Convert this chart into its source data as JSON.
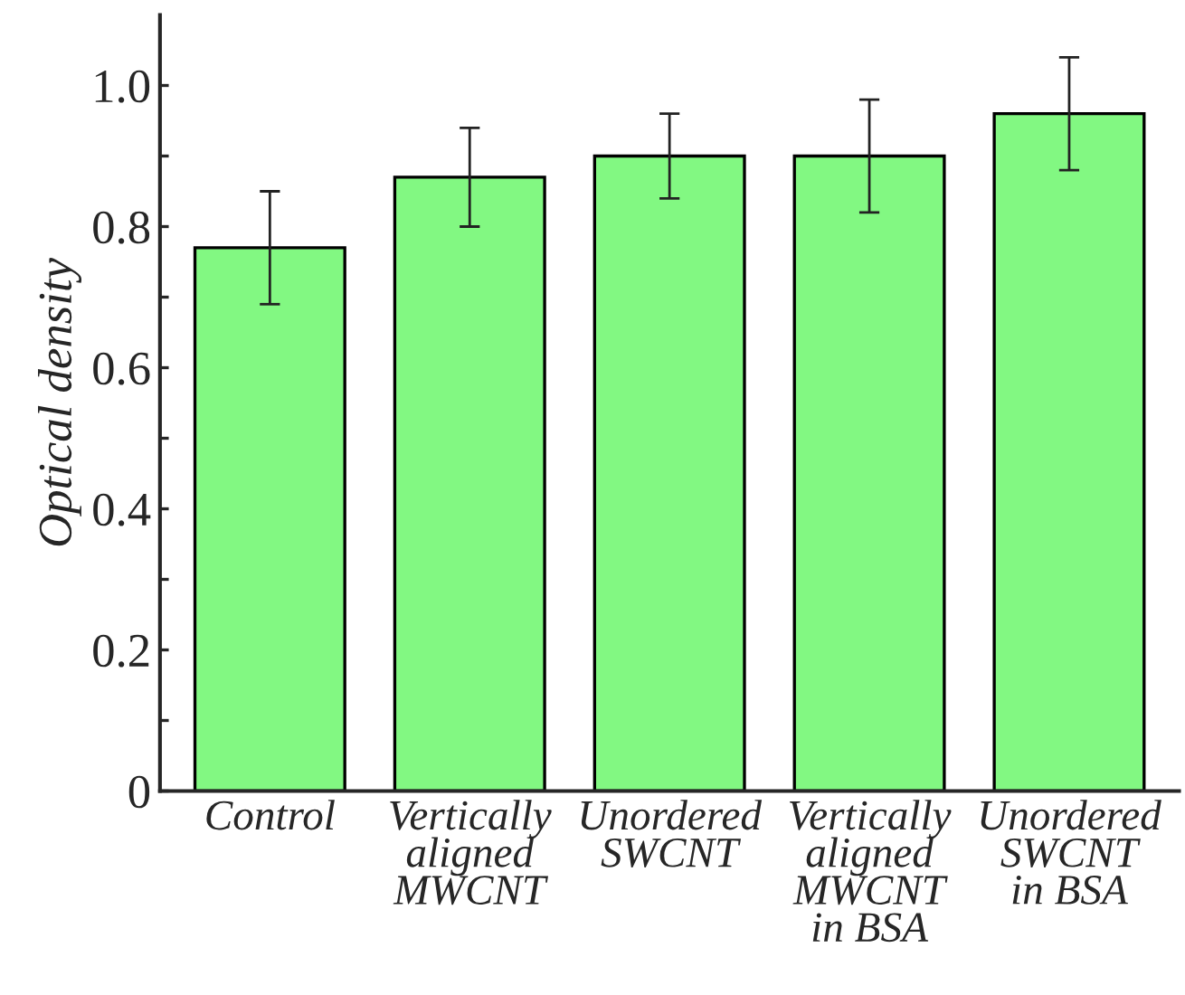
{
  "chart_data": {
    "type": "bar",
    "ylabel": "Optical density",
    "categories": [
      "Control",
      "Vertically\naligned\nMWCNT",
      "Unordered\nSWCNT",
      "Vertically\naligned\nMWCNT\nin BSA",
      "Unordered\nSWCNT\nin BSA"
    ],
    "values": [
      0.77,
      0.87,
      0.9,
      0.9,
      0.96
    ],
    "errors": [
      0.08,
      0.07,
      0.06,
      0.08,
      0.08
    ],
    "color": "#82f882",
    "ylim": [
      0,
      1.1
    ],
    "yticks": [
      0,
      {
        "value": 0.1,
        "label": null
      },
      {
        "value": 0.2,
        "label": "0.2"
      },
      {
        "value": 0.3,
        "label": null
      },
      {
        "value": 0.4,
        "label": "0.4"
      },
      {
        "value": 0.5,
        "label": null
      },
      {
        "value": 0.6,
        "label": "0.6"
      },
      {
        "value": 0.7,
        "label": null
      },
      {
        "value": 0.8,
        "label": "0.8"
      },
      {
        "value": 0.9,
        "label": null
      },
      {
        "value": 1.0,
        "label": "1.0"
      }
    ],
    "grid": false,
    "legend": false
  }
}
